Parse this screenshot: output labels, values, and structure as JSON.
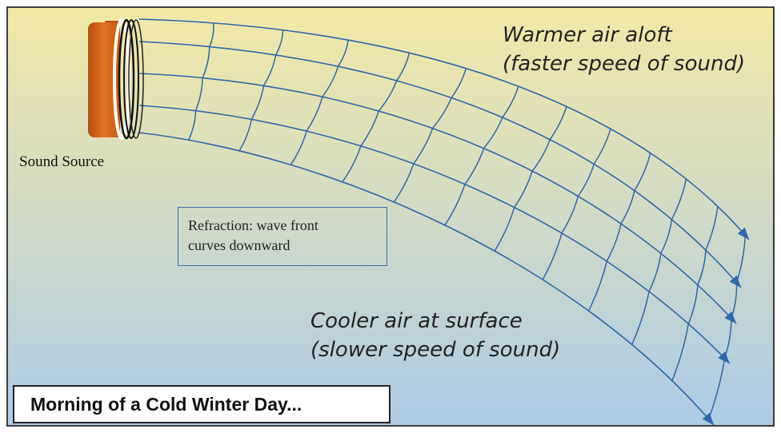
{
  "labels": {
    "warm_line1": "Warmer air aloft",
    "warm_line2": "(faster speed of sound)",
    "cool_line1": "Cooler air at surface",
    "cool_line2": "(slower speed of sound)",
    "source": "Sound Source",
    "refraction_line1": "Refraction: wave front",
    "refraction_line2": "curves downward",
    "title": "Morning of a Cold Winter Day..."
  },
  "colors": {
    "sky_top": "#f3e9a6",
    "sky_bottom": "#aecbe6",
    "wave": "#2f67a8",
    "speaker": "#d2641a"
  },
  "icons": {
    "source": "speaker-icon"
  }
}
